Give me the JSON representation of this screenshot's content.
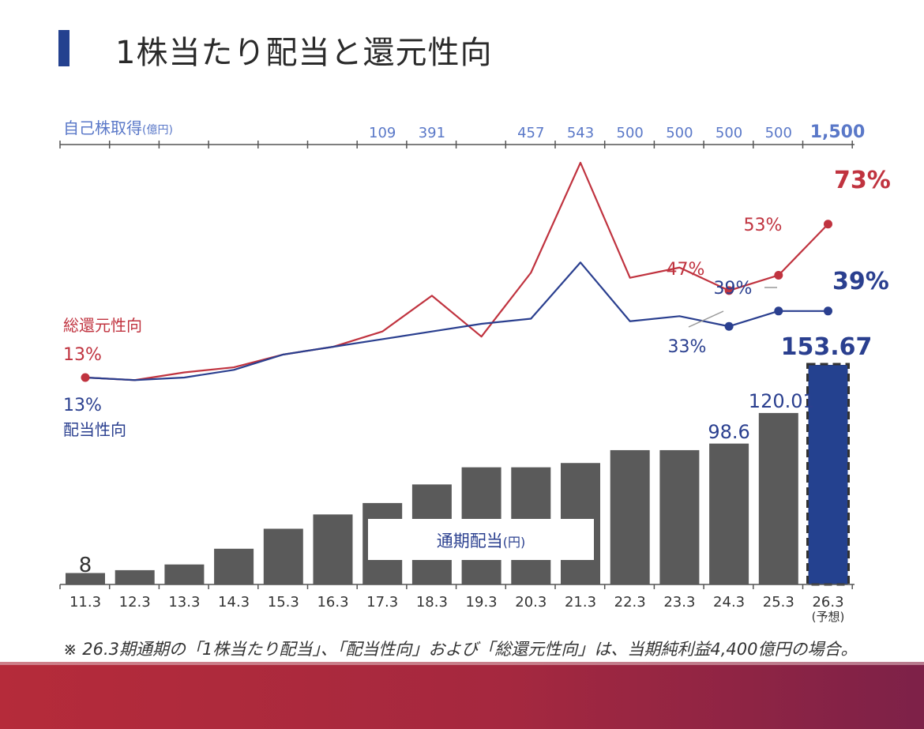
{
  "title": "1株当たり配当と還元性向",
  "buyback": {
    "label": "自己株取得",
    "unit": "(億円)",
    "values": [
      "",
      "",
      "",
      "",
      "",
      "",
      "109",
      "391",
      "",
      "457",
      "543",
      "500",
      "500",
      "500",
      "500",
      "1,500"
    ]
  },
  "legend": {
    "total_return": "総還元性向",
    "payout": "配当性向",
    "dividend_box": "通期配当",
    "dividend_unit": "(円)"
  },
  "footnote": "※ 26.3期通期の「1株当たり配当」、「配当性向」および「総還元性向」は、当期純利益4,400億円の場合。",
  "colors": {
    "accent": "#24418f",
    "total_return": "#c0333f",
    "payout": "#2a3f8f",
    "bar": "#5a5a5a",
    "forecast_bar": "#24418f",
    "buyback_text": "#5a78c8"
  },
  "chart_data": [
    {
      "type": "bar",
      "title": "通期配当",
      "unit": "円",
      "categories": [
        "11.3",
        "12.3",
        "13.3",
        "14.3",
        "15.3",
        "16.3",
        "17.3",
        "18.3",
        "19.3",
        "20.3",
        "21.3",
        "22.3",
        "23.3",
        "24.3",
        "25.3",
        "26.3"
      ],
      "category_notes": [
        "",
        "",
        "",
        "",
        "",
        "",
        "",
        "",
        "",
        "",
        "",
        "",
        "",
        "",
        "",
        "(予想)"
      ],
      "values": [
        8,
        10,
        14,
        25,
        39,
        49,
        57,
        70,
        82,
        82,
        85,
        94,
        94,
        98.6,
        120.01,
        153.67
      ],
      "data_labels": [
        "8",
        "",
        "",
        "",
        "",
        "",
        "",
        "",
        "",
        "",
        "",
        "",
        "",
        "98.6",
        "120.01",
        "153.67"
      ],
      "forecast_index": 15,
      "ylim": [
        0,
        175
      ]
    },
    {
      "type": "line",
      "categories": [
        "11.3",
        "12.3",
        "13.3",
        "14.3",
        "15.3",
        "16.3",
        "17.3",
        "18.3",
        "19.3",
        "20.3",
        "21.3",
        "22.3",
        "23.3",
        "24.3",
        "25.3",
        "26.3"
      ],
      "series": [
        {
          "name": "総還元性向",
          "unit": "%",
          "values": [
            13,
            12,
            15,
            17,
            22,
            25,
            31,
            45,
            29,
            54,
            97,
            52,
            56,
            47,
            53,
            73
          ],
          "data_labels": [
            "13%",
            "",
            "",
            "",
            "",
            "",
            "",
            "",
            "",
            "",
            "",
            "",
            "",
            "47%",
            "53%",
            "73%"
          ]
        },
        {
          "name": "配当性向",
          "unit": "%",
          "values": [
            13,
            12,
            13,
            16,
            22,
            25,
            28,
            31,
            34,
            36,
            58,
            35,
            37,
            33,
            39,
            39
          ],
          "data_labels": [
            "13%",
            "",
            "",
            "",
            "",
            "",
            "",
            "",
            "",
            "",
            "",
            "",
            "",
            "33%",
            "39%",
            "39%"
          ]
        }
      ]
    }
  ]
}
